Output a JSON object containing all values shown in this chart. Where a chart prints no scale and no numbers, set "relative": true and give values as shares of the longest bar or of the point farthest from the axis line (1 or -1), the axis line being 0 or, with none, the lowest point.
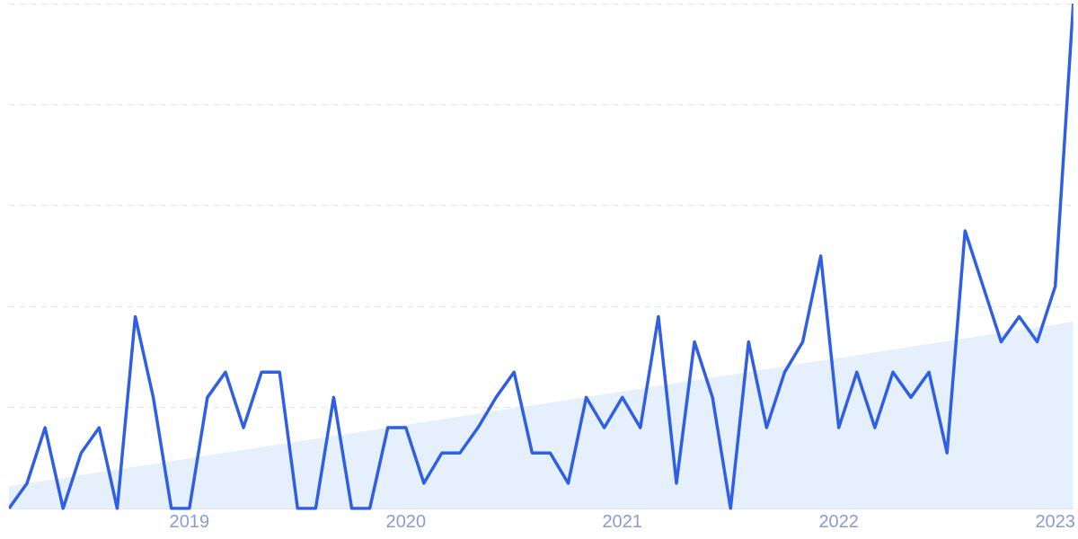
{
  "chart_data": {
    "type": "line",
    "relative": true,
    "grid": "y",
    "legend": false,
    "marker": "none",
    "line_style": "solid",
    "tick_labels": "x",
    "x": [
      "2018-03",
      "2018-04",
      "2018-05",
      "2018-06",
      "2018-07",
      "2018-08",
      "2018-09",
      "2018-10",
      "2018-11",
      "2018-12",
      "2019-01",
      "2019-02",
      "2019-03",
      "2019-04",
      "2019-05",
      "2019-06",
      "2019-07",
      "2019-08",
      "2019-09",
      "2019-10",
      "2019-11",
      "2019-12",
      "2020-01",
      "2020-02",
      "2020-03",
      "2020-04",
      "2020-05",
      "2020-06",
      "2020-07",
      "2020-08",
      "2020-09",
      "2020-10",
      "2020-11",
      "2020-12",
      "2021-01",
      "2021-02",
      "2021-03",
      "2021-04",
      "2021-05",
      "2021-06",
      "2021-07",
      "2021-08",
      "2021-09",
      "2021-10",
      "2021-11",
      "2021-12",
      "2022-01",
      "2022-02",
      "2022-03",
      "2022-04",
      "2022-05",
      "2022-06",
      "2022-07",
      "2022-08",
      "2022-09",
      "2022-10",
      "2022-11",
      "2022-12",
      "2023-01",
      "2023-02"
    ],
    "xlim": [
      "2018-03",
      "2023-02"
    ],
    "xticks": [
      "2019",
      "2020",
      "2021",
      "2022",
      "2023"
    ],
    "series": [
      {
        "type": "area",
        "color": "#e6effc",
        "x": [
          "2018-03",
          "2023-02"
        ],
        "values": [
          0.044,
          0.37
        ]
      },
      {
        "color": "#2f5fe3",
        "values": [
          0,
          0.05,
          0.16,
          0,
          0.11,
          0.16,
          0,
          0.38,
          0.22,
          0,
          0,
          0.22,
          0.27,
          0.16,
          0.27,
          0.27,
          0,
          0,
          0.22,
          0,
          0,
          0.16,
          0.16,
          0.05,
          0.11,
          0.11,
          0.16,
          0.22,
          0.27,
          0.11,
          0.11,
          0.05,
          0.22,
          0.16,
          0.22,
          0.16,
          0.38,
          0.05,
          0.33,
          0.22,
          0,
          0.33,
          0.16,
          0.27,
          0.33,
          0.5,
          0.16,
          0.27,
          0.16,
          0.27,
          0.22,
          0.27,
          0.11,
          0.55,
          0.44,
          0.33,
          0.38,
          0.33,
          0.44,
          1
        ]
      }
    ]
  }
}
